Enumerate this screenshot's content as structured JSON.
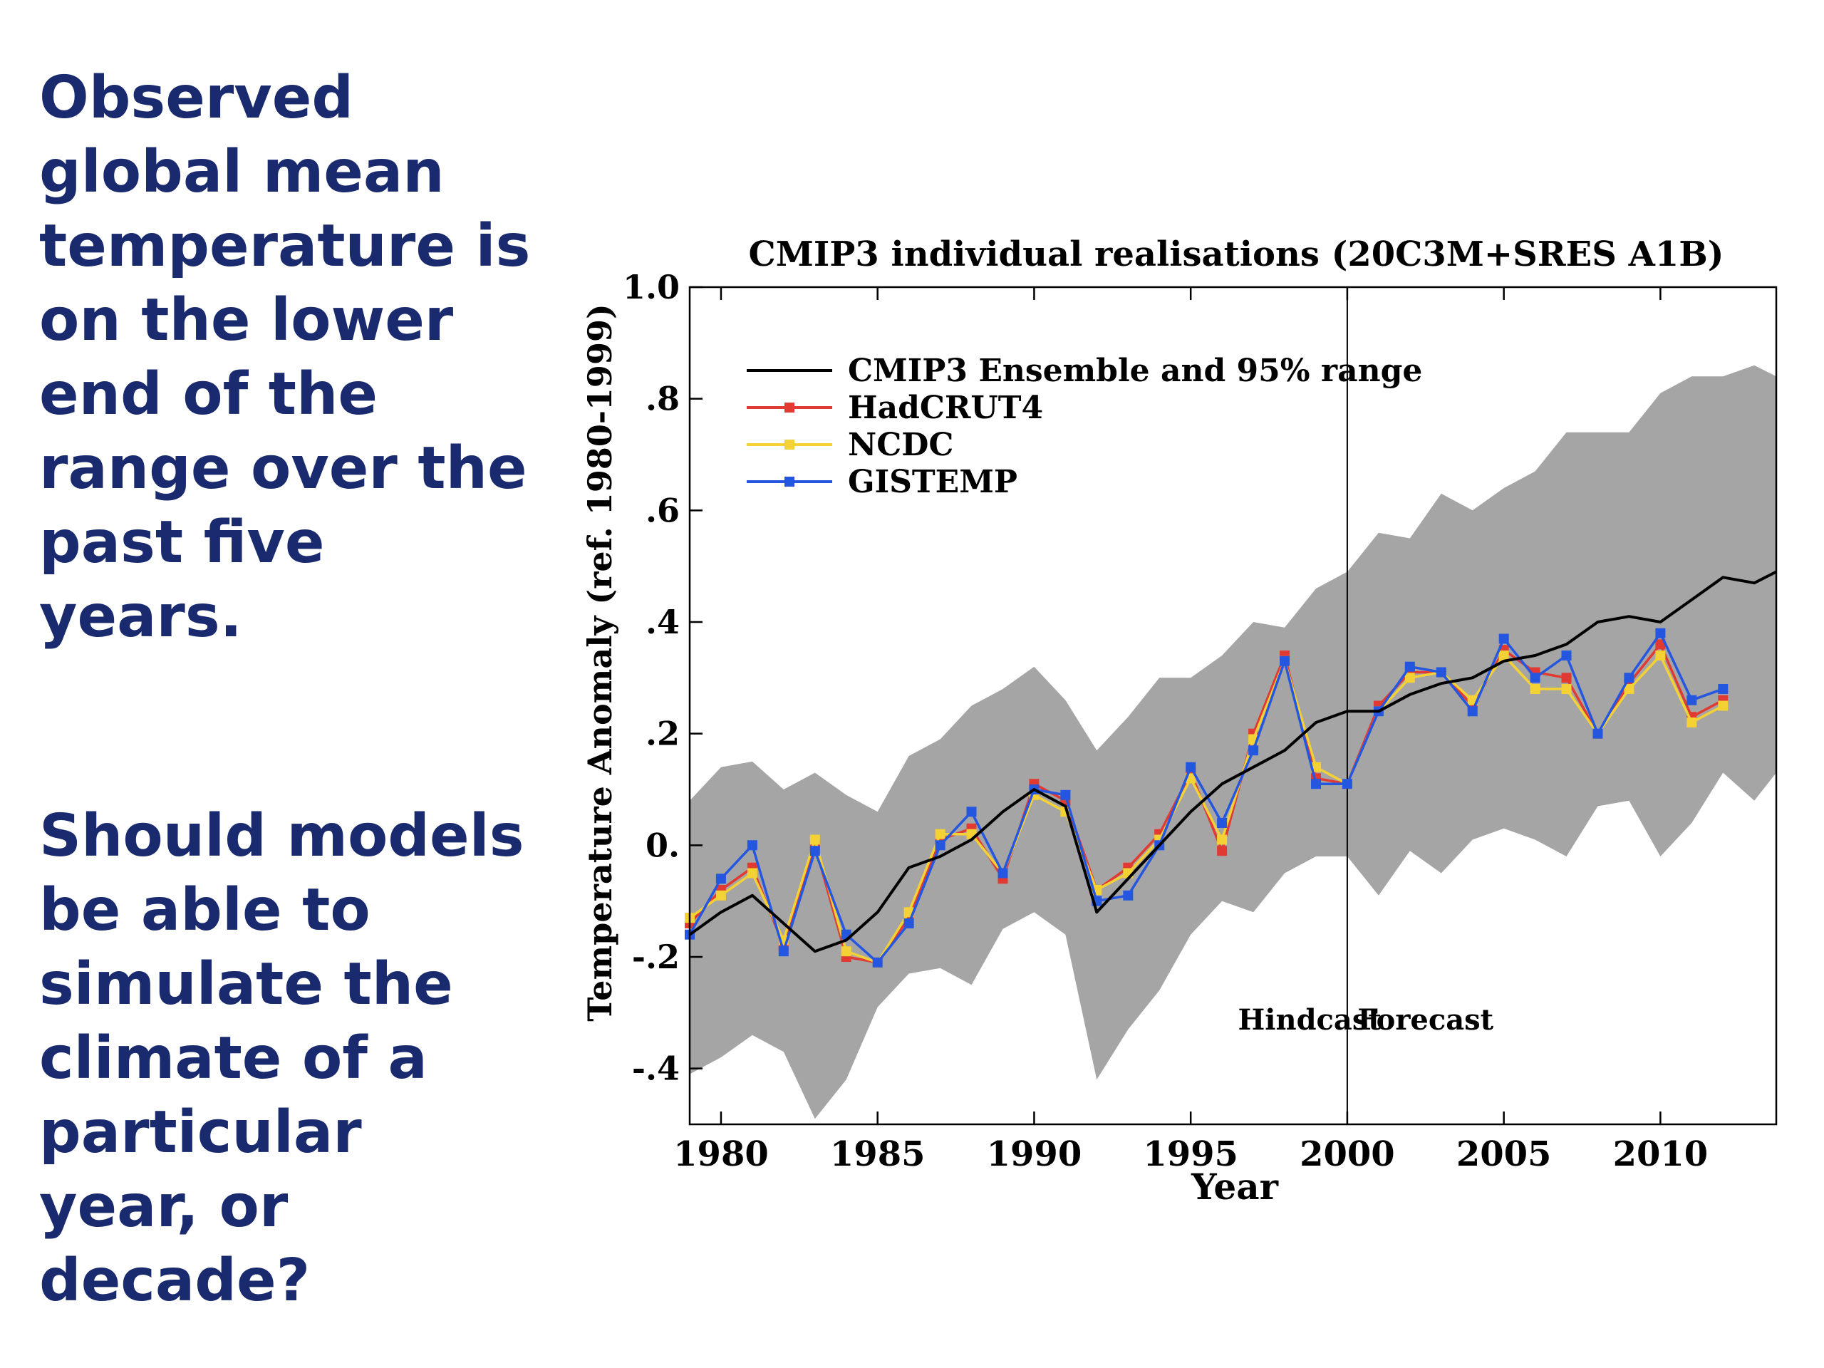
{
  "slide": {
    "text_block_1": [
      "Observed",
      "global mean",
      "temperature is",
      "on the lower",
      "end of the",
      "range over the",
      "past five",
      "years."
    ],
    "text_block_2": [
      "Should models",
      "be able to",
      "simulate the",
      "climate of a",
      "particular",
      "year, or",
      "decade?"
    ],
    "text_color": "#1a2a6e"
  },
  "chart_data": {
    "type": "line",
    "title": "CMIP3 individual realisations (20C3M+SRES A1B)",
    "xlabel": "Year",
    "ylabel": "Temperature Anomaly (ref. 1980-1999)",
    "xlim": [
      1979,
      2013.7
    ],
    "ylim": [
      -0.5,
      1.0
    ],
    "xticks": [
      1980,
      1985,
      1990,
      1995,
      2000,
      2005,
      2010
    ],
    "xtick_labels": [
      "1980",
      "1985",
      "1990",
      "1995",
      "2000",
      "2005",
      "2010"
    ],
    "yticks": [
      -0.4,
      -0.2,
      0.0,
      0.2,
      0.4,
      0.6,
      0.8,
      1.0
    ],
    "ytick_labels": [
      "-.4",
      "-.2",
      "0.",
      ".2",
      ".4",
      ".6",
      ".8",
      "1.0"
    ],
    "legend_position": "top-left",
    "annotations": [
      {
        "text": "Hindcast",
        "x": 1998.8,
        "y": -0.33
      },
      {
        "text": "Forecast",
        "x": 2002.5,
        "y": -0.33
      }
    ],
    "divider_x": 2000,
    "range_band": {
      "label": "CMIP3 Ensemble and 95% range",
      "color": "#a5a5a5",
      "x": [
        1979,
        1980,
        1981,
        1982,
        1983,
        1984,
        1985,
        1986,
        1987,
        1988,
        1989,
        1990,
        1991,
        1992,
        1993,
        1994,
        1995,
        1996,
        1997,
        1998,
        1999,
        2000,
        2001,
        2002,
        2003,
        2004,
        2005,
        2006,
        2007,
        2008,
        2009,
        2010,
        2011,
        2012,
        2013,
        2013.7
      ],
      "upper": [
        0.08,
        0.14,
        0.15,
        0.1,
        0.13,
        0.09,
        0.06,
        0.16,
        0.19,
        0.25,
        0.28,
        0.32,
        0.26,
        0.17,
        0.23,
        0.3,
        0.3,
        0.34,
        0.4,
        0.39,
        0.46,
        0.49,
        0.56,
        0.55,
        0.63,
        0.6,
        0.64,
        0.67,
        0.74,
        0.74,
        0.74,
        0.81,
        0.84,
        0.84,
        0.86,
        0.84
      ],
      "lower": [
        -0.41,
        -0.38,
        -0.34,
        -0.37,
        -0.49,
        -0.42,
        -0.29,
        -0.23,
        -0.22,
        -0.25,
        -0.15,
        -0.12,
        -0.16,
        -0.42,
        -0.33,
        -0.26,
        -0.16,
        -0.1,
        -0.12,
        -0.05,
        -0.02,
        -0.02,
        -0.09,
        -0.01,
        -0.05,
        0.01,
        0.03,
        0.01,
        -0.02,
        0.07,
        0.08,
        -0.02,
        0.04,
        0.13,
        0.08,
        0.13
      ]
    },
    "series": [
      {
        "name": "CMIP3 Ensemble and 95% range",
        "color": "#000000",
        "marker": "none",
        "x": [
          1979,
          1980,
          1981,
          1982,
          1983,
          1984,
          1985,
          1986,
          1987,
          1988,
          1989,
          1990,
          1991,
          1992,
          1993,
          1994,
          1995,
          1996,
          1997,
          1998,
          1999,
          2000,
          2001,
          2002,
          2003,
          2004,
          2005,
          2006,
          2007,
          2008,
          2009,
          2010,
          2011,
          2012,
          2013,
          2013.7
        ],
        "values": [
          -0.16,
          -0.12,
          -0.09,
          -0.14,
          -0.19,
          -0.17,
          -0.12,
          -0.04,
          -0.02,
          0.01,
          0.06,
          0.1,
          0.07,
          -0.12,
          -0.06,
          0.0,
          0.06,
          0.11,
          0.14,
          0.17,
          0.22,
          0.24,
          0.24,
          0.27,
          0.29,
          0.3,
          0.33,
          0.34,
          0.36,
          0.4,
          0.41,
          0.4,
          0.44,
          0.48,
          0.47,
          0.49
        ]
      },
      {
        "name": "HadCRUT4",
        "color": "#e03a33",
        "marker": "square",
        "x": [
          1979,
          1980,
          1981,
          1982,
          1983,
          1984,
          1985,
          1986,
          1987,
          1988,
          1989,
          1990,
          1991,
          1992,
          1993,
          1994,
          1995,
          1996,
          1997,
          1998,
          1999,
          2000,
          2001,
          2002,
          2003,
          2004,
          2005,
          2006,
          2007,
          2008,
          2009,
          2010,
          2011,
          2012
        ],
        "values": [
          -0.14,
          -0.08,
          -0.04,
          -0.18,
          0.0,
          -0.2,
          -0.21,
          -0.13,
          0.01,
          0.03,
          -0.06,
          0.11,
          0.08,
          -0.08,
          -0.04,
          0.02,
          0.13,
          -0.01,
          0.2,
          0.34,
          0.12,
          0.11,
          0.25,
          0.31,
          0.31,
          0.25,
          0.35,
          0.31,
          0.3,
          0.2,
          0.29,
          0.36,
          0.23,
          0.26
        ]
      },
      {
        "name": "NCDC",
        "color": "#f4d236",
        "marker": "square",
        "x": [
          1979,
          1980,
          1981,
          1982,
          1983,
          1984,
          1985,
          1986,
          1987,
          1988,
          1989,
          1990,
          1991,
          1992,
          1993,
          1994,
          1995,
          1996,
          1997,
          1998,
          1999,
          2000,
          2001,
          2002,
          2003,
          2004,
          2005,
          2006,
          2007,
          2008,
          2009,
          2010,
          2011,
          2012
        ],
        "values": [
          -0.13,
          -0.09,
          -0.05,
          -0.17,
          0.01,
          -0.19,
          -0.21,
          -0.12,
          0.02,
          0.02,
          -0.05,
          0.09,
          0.06,
          -0.08,
          -0.05,
          0.01,
          0.12,
          0.01,
          0.19,
          0.33,
          0.14,
          0.11,
          0.24,
          0.3,
          0.31,
          0.26,
          0.34,
          0.28,
          0.28,
          0.2,
          0.28,
          0.34,
          0.22,
          0.25
        ]
      },
      {
        "name": "GISTEMP",
        "color": "#2456e0",
        "marker": "square",
        "x": [
          1979,
          1980,
          1981,
          1982,
          1983,
          1984,
          1985,
          1986,
          1987,
          1988,
          1989,
          1990,
          1991,
          1992,
          1993,
          1994,
          1995,
          1996,
          1997,
          1998,
          1999,
          2000,
          2001,
          2002,
          2003,
          2004,
          2005,
          2006,
          2007,
          2008,
          2009,
          2010,
          2011,
          2012
        ],
        "values": [
          -0.16,
          -0.06,
          0.0,
          -0.19,
          -0.01,
          -0.16,
          -0.21,
          -0.14,
          0.0,
          0.06,
          -0.05,
          0.1,
          0.09,
          -0.1,
          -0.09,
          0.0,
          0.14,
          0.04,
          0.17,
          0.33,
          0.11,
          0.11,
          0.24,
          0.32,
          0.31,
          0.24,
          0.37,
          0.3,
          0.34,
          0.2,
          0.3,
          0.38,
          0.26,
          0.28
        ]
      }
    ]
  }
}
